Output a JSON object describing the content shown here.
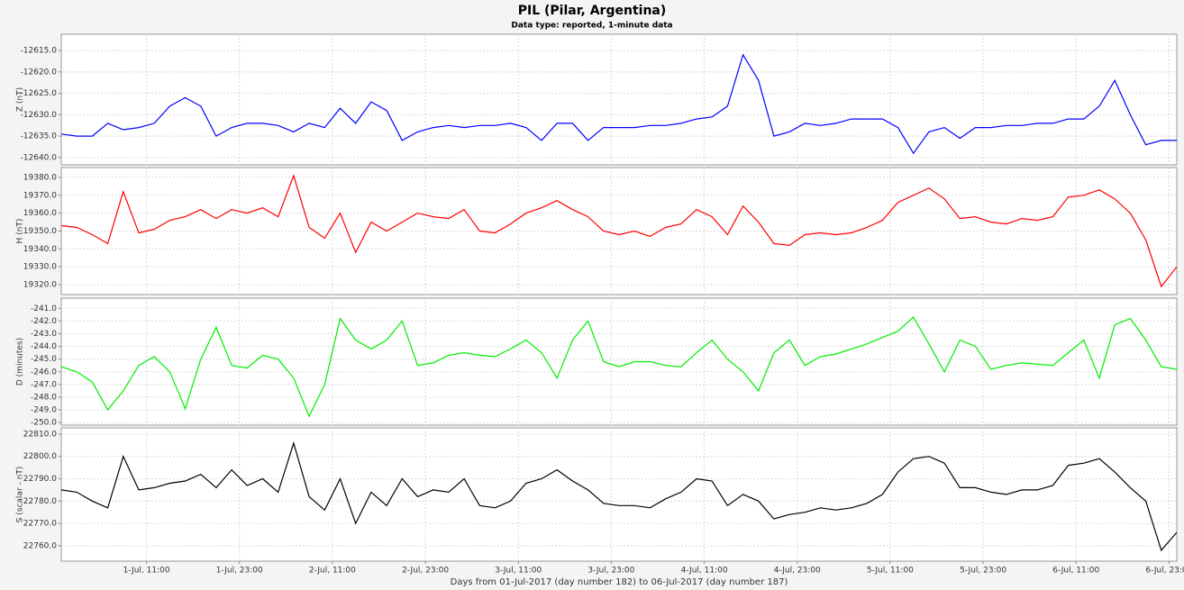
{
  "chart_data": [
    {
      "type": "line",
      "title": "PIL (Pilar, Argentina)",
      "subtitle": "Data type: reported, 1-minute data",
      "ylabel": "Z (nT)",
      "x": [
        0,
        2,
        4,
        6,
        8,
        10,
        12,
        14,
        16,
        18,
        20,
        22,
        24,
        26,
        28,
        30,
        32,
        34,
        36,
        38,
        40,
        42,
        44,
        46,
        48,
        50,
        52,
        54,
        56,
        58,
        60,
        62,
        64,
        66,
        68,
        70,
        72,
        74,
        76,
        78,
        80,
        82,
        84,
        86,
        88,
        90,
        92,
        94,
        96,
        98,
        100,
        102,
        104,
        106,
        108,
        110,
        112,
        114,
        116,
        118,
        120,
        122,
        124,
        126,
        128,
        130,
        132,
        134,
        136,
        138,
        140,
        142,
        144
      ],
      "series": [
        {
          "name": "Z",
          "color": "#0000ff",
          "values": [
            -12634.5,
            -12635,
            -12635,
            -12632,
            -12633.5,
            -12633,
            -12632,
            -12628,
            -12626,
            -12628,
            -12635,
            -12633,
            -12632,
            -12632,
            -12632.5,
            -12634,
            -12632,
            -12633,
            -12628.5,
            -12632,
            -12627,
            -12629,
            -12636,
            -12634,
            -12633,
            -12632.5,
            -12633,
            -12632.5,
            -12632.5,
            -12632,
            -12633,
            -12636,
            -12632,
            -12632,
            -12636,
            -12633,
            -12633,
            -12633,
            -12632.5,
            -12632.5,
            -12632,
            -12631,
            -12630.5,
            -12628,
            -12616,
            -12622,
            -12635,
            -12634,
            -12632,
            -12632.5,
            -12632,
            -12631,
            -12631,
            -12631,
            -12633,
            -12639,
            -12634,
            -12633,
            -12635.5,
            -12633,
            -12633,
            -12632.5,
            -12632.5,
            -12632,
            -12632,
            -12631,
            -12631,
            -12628,
            -12622,
            -12630,
            -12637,
            -12636,
            -12636
          ]
        }
      ],
      "xlim": [
        0,
        144
      ],
      "ylim": [
        -12641.7,
        -12611.2
      ],
      "yticks": [
        {
          "value": -12615,
          "label": "-12615.0"
        },
        {
          "value": -12620,
          "label": "-12620.0"
        },
        {
          "value": -12625,
          "label": "-12625.0"
        },
        {
          "value": -12630,
          "label": "-12630.0"
        },
        {
          "value": -12635,
          "label": "-12635.0"
        },
        {
          "value": -12640,
          "label": "-12640.0"
        }
      ],
      "grid": true
    },
    {
      "type": "line",
      "ylabel": "H (nT)",
      "x": [
        0,
        2,
        4,
        6,
        8,
        10,
        12,
        14,
        16,
        18,
        20,
        22,
        24,
        26,
        28,
        30,
        32,
        34,
        36,
        38,
        40,
        42,
        44,
        46,
        48,
        50,
        52,
        54,
        56,
        58,
        60,
        62,
        64,
        66,
        68,
        70,
        72,
        74,
        76,
        78,
        80,
        82,
        84,
        86,
        88,
        90,
        92,
        94,
        96,
        98,
        100,
        102,
        104,
        106,
        108,
        110,
        112,
        114,
        116,
        118,
        120,
        122,
        124,
        126,
        128,
        130,
        132,
        134,
        136,
        138,
        140,
        142,
        144
      ],
      "series": [
        {
          "name": "H",
          "color": "#ff0000",
          "values": [
            19353,
            19352,
            19348,
            19343,
            19372,
            19349,
            19351,
            19356,
            19358,
            19362,
            19357,
            19362,
            19360,
            19363,
            19358,
            19381,
            19352,
            19346,
            19360,
            19338,
            19355,
            19350,
            19355,
            19360,
            19358,
            19357,
            19362,
            19350,
            19349,
            19354,
            19360,
            19363,
            19367,
            19362,
            19358,
            19350,
            19348,
            19350,
            19347,
            19352,
            19354,
            19362,
            19358,
            19348,
            19364,
            19355,
            19343,
            19342,
            19348,
            19349,
            19348,
            19349,
            19352,
            19356,
            19366,
            19370,
            19374,
            19368,
            19357,
            19358,
            19355,
            19354,
            19357,
            19356,
            19358,
            19369,
            19370,
            19373,
            19368,
            19360,
            19345,
            19319,
            19330
          ]
        }
      ],
      "xlim": [
        0,
        144
      ],
      "ylim": [
        19314.5,
        19385.5
      ],
      "yticks": [
        {
          "value": 19320,
          "label": "19320.0"
        },
        {
          "value": 19330,
          "label": "19330.0"
        },
        {
          "value": 19340,
          "label": "19340.0"
        },
        {
          "value": 19350,
          "label": "19350.0"
        },
        {
          "value": 19360,
          "label": "19360.0"
        },
        {
          "value": 19370,
          "label": "19370.0"
        },
        {
          "value": 19380,
          "label": "19380.0"
        }
      ],
      "grid": true
    },
    {
      "type": "line",
      "ylabel": "D (minutes)",
      "x": [
        0,
        2,
        4,
        6,
        8,
        10,
        12,
        14,
        16,
        18,
        20,
        22,
        24,
        26,
        28,
        30,
        32,
        34,
        36,
        38,
        40,
        42,
        44,
        46,
        48,
        50,
        52,
        54,
        56,
        58,
        60,
        62,
        64,
        66,
        68,
        70,
        72,
        74,
        76,
        78,
        80,
        82,
        84,
        86,
        88,
        90,
        92,
        94,
        96,
        98,
        100,
        102,
        104,
        106,
        108,
        110,
        112,
        114,
        116,
        118,
        120,
        122,
        124,
        126,
        128,
        130,
        132,
        134,
        136,
        138,
        140,
        142,
        144
      ],
      "series": [
        {
          "name": "D",
          "color": "#00ee00",
          "values": [
            -245.6,
            -246,
            -246.8,
            -249,
            -247.5,
            -245.5,
            -244.8,
            -246,
            -248.9,
            -245,
            -242.5,
            -245.5,
            -245.7,
            -244.7,
            -245,
            -246.5,
            -249.5,
            -247,
            -241.8,
            -243.5,
            -244.2,
            -243.5,
            -242,
            -245.5,
            -245.3,
            -244.7,
            -244.5,
            -244.7,
            -244.8,
            -244.2,
            -243.5,
            -244.5,
            -246.5,
            -243.5,
            -242,
            -245.2,
            -245.6,
            -245.2,
            -245.2,
            -245.5,
            -245.6,
            -244.5,
            -243.5,
            -245,
            -246,
            -247.5,
            -244.5,
            -243.5,
            -245.5,
            -244.8,
            -244.6,
            -244.2,
            -243.8,
            -243.3,
            -242.8,
            -241.7,
            -243.8,
            -246,
            -243.5,
            -244,
            -245.8,
            -245.5,
            -245.3,
            -245.4,
            -245.5,
            -244.5,
            -243.5,
            -246.5,
            -242.3,
            -241.8,
            -243.5,
            -245.6,
            -245.8
          ]
        }
      ],
      "xlim": [
        0,
        144
      ],
      "ylim": [
        -250.2,
        -240.2
      ],
      "yticks": [
        {
          "value": -241,
          "label": "-241.0"
        },
        {
          "value": -242,
          "label": "-242.0"
        },
        {
          "value": -243,
          "label": "-243.0"
        },
        {
          "value": -244,
          "label": "-244.0"
        },
        {
          "value": -245,
          "label": "-245.0"
        },
        {
          "value": -246,
          "label": "-246.0"
        },
        {
          "value": -247,
          "label": "-247.0"
        },
        {
          "value": -248,
          "label": "-248.0"
        },
        {
          "value": -249,
          "label": "-249.0"
        },
        {
          "value": -250,
          "label": "-250.0"
        }
      ],
      "grid": true
    },
    {
      "type": "line",
      "ylabel": "S (scalar - nT)",
      "xlabel": "Days from 01-Jul-2017 (day number 182) to 06-Jul-2017 (day number 187)",
      "x": [
        0,
        2,
        4,
        6,
        8,
        10,
        12,
        14,
        16,
        18,
        20,
        22,
        24,
        26,
        28,
        30,
        32,
        34,
        36,
        38,
        40,
        42,
        44,
        46,
        48,
        50,
        52,
        54,
        56,
        58,
        60,
        62,
        64,
        66,
        68,
        70,
        72,
        74,
        76,
        78,
        80,
        82,
        84,
        86,
        88,
        90,
        92,
        94,
        96,
        98,
        100,
        102,
        104,
        106,
        108,
        110,
        112,
        114,
        116,
        118,
        120,
        122,
        124,
        126,
        128,
        130,
        132,
        134,
        136,
        138,
        140,
        142,
        144
      ],
      "series": [
        {
          "name": "S",
          "color": "#000000",
          "values": [
            22785,
            22784,
            22780,
            22777,
            22800,
            22785,
            22786,
            22788,
            22789,
            22792,
            22786,
            22794,
            22787,
            22790,
            22784,
            22806,
            22782,
            22776,
            22790,
            22770,
            22784,
            22778,
            22790,
            22782,
            22785,
            22784,
            22790,
            22778,
            22777,
            22780,
            22788,
            22790,
            22794,
            22789,
            22785,
            22779,
            22778,
            22778,
            22777,
            22781,
            22784,
            22790,
            22789,
            22778,
            22783,
            22780,
            22772,
            22774,
            22775,
            22777,
            22776,
            22777,
            22779,
            22783,
            22793,
            22799,
            22800,
            22797,
            22786,
            22786,
            22784,
            22783,
            22785,
            22785,
            22787,
            22796,
            22797,
            22799,
            22793,
            22786,
            22780,
            22758,
            22766
          ]
        }
      ],
      "xlim": [
        0,
        144
      ],
      "ylim": [
        22753.1,
        22812.8
      ],
      "yticks": [
        {
          "value": 22760,
          "label": "22760.0"
        },
        {
          "value": 22770,
          "label": "22770.0"
        },
        {
          "value": 22780,
          "label": "22780.0"
        },
        {
          "value": 22790,
          "label": "22790.0"
        },
        {
          "value": 22800,
          "label": "22800.0"
        },
        {
          "value": 22810,
          "label": "22810.0"
        }
      ],
      "xticks": [
        {
          "value": 11,
          "label": "1-Jul, 11:00"
        },
        {
          "value": 23,
          "label": "1-Jul, 23:00"
        },
        {
          "value": 35,
          "label": "2-Jul, 11:00"
        },
        {
          "value": 47,
          "label": "2-Jul, 23:00"
        },
        {
          "value": 59,
          "label": "3-Jul, 11:00"
        },
        {
          "value": 71,
          "label": "3-Jul, 23:00"
        },
        {
          "value": 83,
          "label": "4-Jul, 11:00"
        },
        {
          "value": 95,
          "label": "4-Jul, 23:00"
        },
        {
          "value": 107,
          "label": "5-Jul, 11:00"
        },
        {
          "value": 119,
          "label": "5-Jul, 23:00"
        },
        {
          "value": 131,
          "label": "6-Jul, 11:00"
        },
        {
          "value": 143,
          "label": "6-Jul, 23:00"
        }
      ],
      "grid": true
    }
  ]
}
